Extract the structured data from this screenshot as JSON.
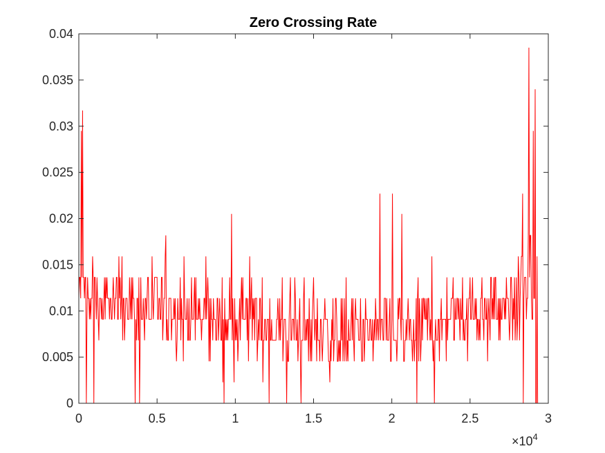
{
  "chart_data": {
    "type": "line",
    "title": "Zero Crossing Rate",
    "xlabel": "",
    "ylabel": "",
    "x_exponent_label": "×10",
    "x_exponent_power": "4",
    "xlim": [
      0,
      30000
    ],
    "ylim": [
      0,
      0.04
    ],
    "x_ticks": [
      0,
      5000,
      10000,
      15000,
      20000,
      25000,
      30000
    ],
    "x_tick_labels": [
      "0",
      "0.5",
      "1",
      "1.5",
      "2",
      "2.5",
      "3"
    ],
    "y_ticks": [
      0,
      0.005,
      0.01,
      0.015,
      0.02,
      0.025,
      0.03,
      0.035,
      0.04
    ],
    "y_tick_labels": [
      "0",
      "0.005",
      "0.01",
      "0.015",
      "0.02",
      "0.025",
      "0.03",
      "0.035",
      "0.04"
    ],
    "grid": false,
    "series": [
      {
        "color": "#ff0000",
        "x_start": 0,
        "x_step": 40,
        "count": 734,
        "profile": [
          [
            0,
            0.0115
          ],
          [
            3000,
            0.0105
          ],
          [
            8000,
            0.0095
          ],
          [
            12000,
            0.0085
          ],
          [
            16000,
            0.0075
          ],
          [
            21000,
            0.0075
          ],
          [
            24000,
            0.0095
          ],
          [
            28000,
            0.0105
          ],
          [
            28500,
            0.0135
          ],
          [
            29300,
            0.0125
          ]
        ],
        "peaks": [
          {
            "x": 250,
            "y": 0.0317
          },
          {
            "x": 150,
            "y": 0.0295
          },
          {
            "x": 9750,
            "y": 0.0205
          },
          {
            "x": 19250,
            "y": 0.0227
          },
          {
            "x": 20050,
            "y": 0.0227
          },
          {
            "x": 20650,
            "y": 0.0205
          },
          {
            "x": 28350,
            "y": 0.0227
          },
          {
            "x": 28750,
            "y": 0.0385
          },
          {
            "x": 29050,
            "y": 0.0295
          },
          {
            "x": 29150,
            "y": 0.034
          }
        ]
      }
    ]
  }
}
